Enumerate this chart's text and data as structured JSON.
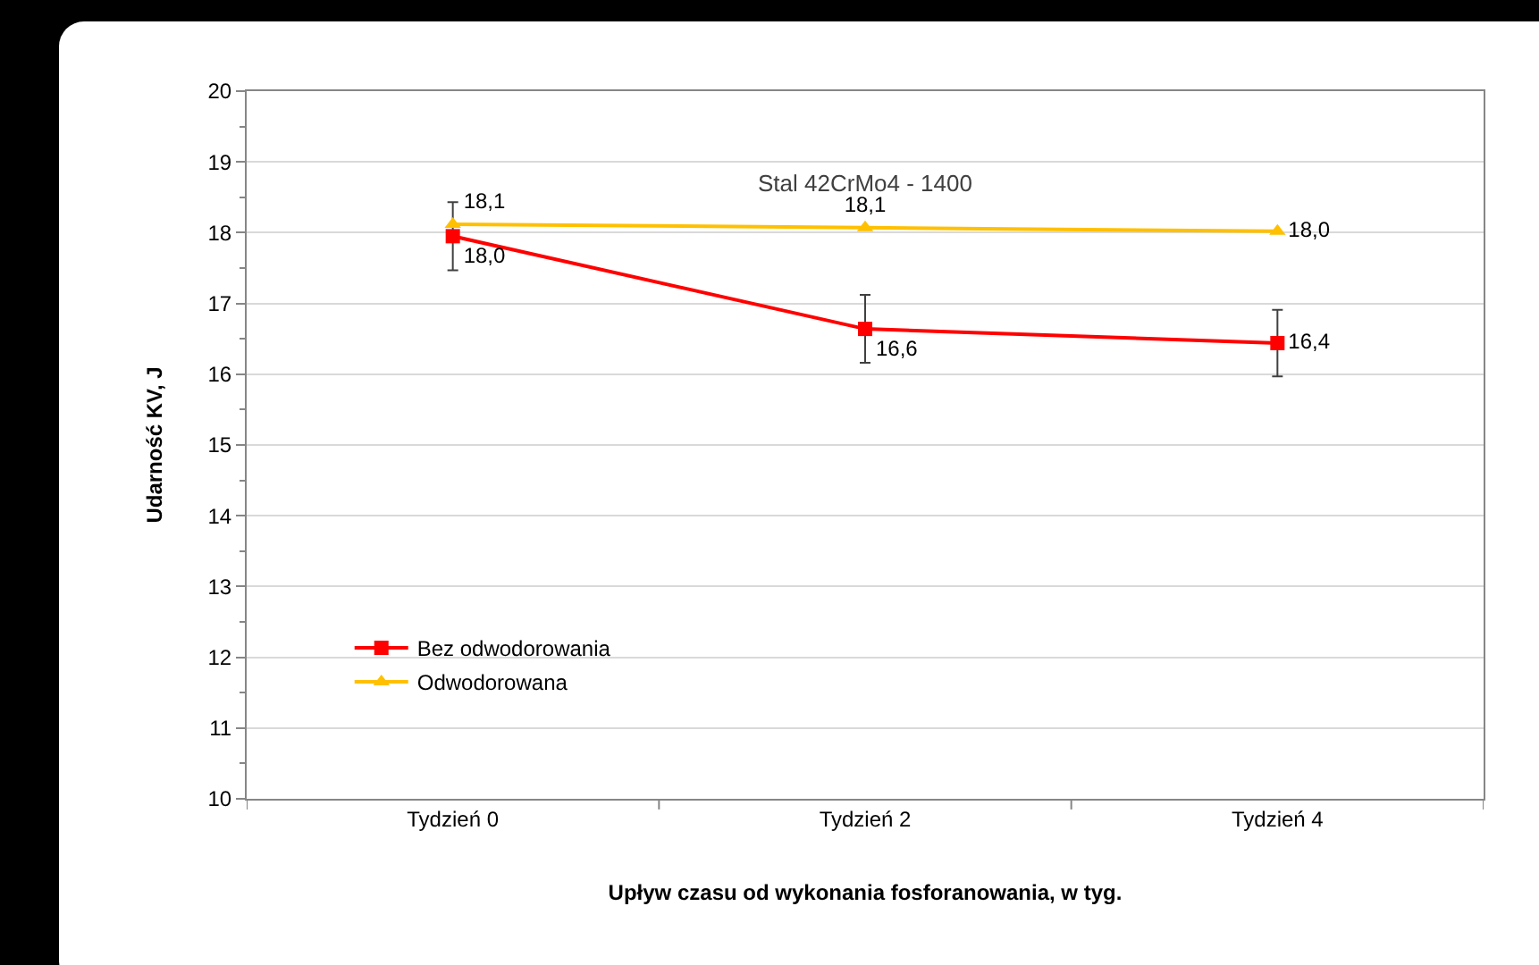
{
  "chart_data": {
    "type": "line",
    "title": "Stal 42CrMo4 - 1400",
    "xlabel": "Upływ czasu od wykonania fosforanowania, w tyg.",
    "ylabel": "Udarność KV, J",
    "categories": [
      "Tydzień 0",
      "Tydzień 2",
      "Tydzień 4"
    ],
    "series": [
      {
        "name": "Bez odwodorowania",
        "color": "#ff0000",
        "marker": "square",
        "values": [
          17.95,
          16.64,
          16.44
        ],
        "errors": [
          0.48,
          0.48,
          0.47
        ],
        "value_labels": [
          "18,0",
          "16,6",
          "16,4"
        ]
      },
      {
        "name": "Odwodorowana",
        "color": "#ffc000",
        "marker": "triangle",
        "values": [
          18.12,
          18.07,
          18.02
        ],
        "value_labels": [
          "18,1",
          "18,1",
          "18,0"
        ]
      }
    ],
    "ylim": [
      10,
      20
    ],
    "yticks": [
      10,
      11,
      12,
      13,
      14,
      15,
      16,
      17,
      18,
      19,
      20
    ],
    "grid": "y",
    "legend": "bottom left",
    "line_style": "solid"
  }
}
